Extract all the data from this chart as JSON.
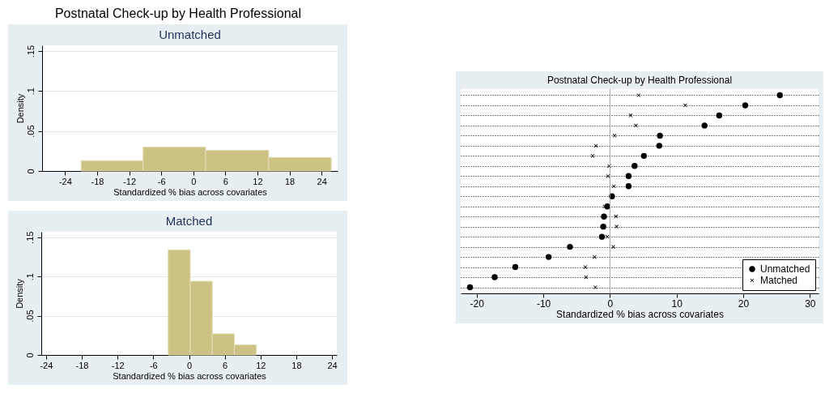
{
  "chart_data": [
    {
      "type": "histogram",
      "title": "Postnatal Check-up by Health Professional",
      "subtitle": "Unmatched",
      "xlabel": "Standardized % bias across covariates",
      "ylabel": "Density",
      "bins": [
        -21,
        -9.4,
        2.3,
        14.1,
        25.8
      ],
      "values": [
        0.013,
        0.03,
        0.026,
        0.017
      ],
      "color": "#cbc283",
      "xlim": [
        -28.3,
        27
      ],
      "xticks": [
        -24,
        -18,
        -12,
        -6,
        0,
        6,
        12,
        18,
        24
      ],
      "ylim": [
        0,
        0.157
      ],
      "yticks": [
        0,
        {
          "value": 0.05,
          "label": ".05"
        },
        {
          "value": 0.1,
          "label": ".1"
        },
        {
          "value": 0.15,
          "label": ".15"
        }
      ],
      "grid": "y"
    },
    {
      "type": "histogram",
      "title": "Matched",
      "xlabel": "Standardized % bias across covariates",
      "ylabel": "Density",
      "bins": [
        -3.5,
        0.2,
        3.9,
        7.6,
        11.3
      ],
      "values": [
        0.134,
        0.094,
        0.027,
        0.013
      ],
      "color": "#cbc283",
      "xlim": [
        -24.8,
        24.8
      ],
      "xticks": [
        -24,
        -18,
        -12,
        -6,
        0,
        6,
        12,
        18,
        24
      ],
      "ylim": [
        0,
        0.157
      ],
      "yticks": [
        0,
        {
          "value": 0.05,
          "label": ".05"
        },
        {
          "value": 0.1,
          "label": ".1"
        },
        {
          "value": 0.15,
          "label": ".15"
        }
      ],
      "grid": "y"
    },
    {
      "type": "scatter",
      "title": "Postnatal Check-up by Health Professional",
      "xlabel": "Standardized % bias across covariates",
      "orientation": "horizontal",
      "categories": [
        null,
        null,
        null,
        null,
        null,
        null,
        null,
        null,
        null,
        null,
        null,
        null,
        null,
        null,
        null,
        null,
        null,
        null,
        null,
        null
      ],
      "series": [
        {
          "name": "Unmatched",
          "color": "#000000",
          "marker": "circle",
          "values": [
            25.5,
            20.3,
            16.4,
            14.2,
            7.5,
            7.4,
            5.1,
            3.7,
            2.8,
            2.8,
            0.3,
            -0.4,
            -0.9,
            -1.0,
            -1.2,
            -6.0,
            -9.2,
            -14.2,
            -17.3,
            -21.0
          ]
        },
        {
          "name": "Matched",
          "color": "#000000",
          "marker": "cross",
          "values": [
            4.3,
            11.3,
            3.1,
            3.9,
            0.7,
            -2.1,
            -2.6,
            -0.1,
            -0.3,
            0.6,
            null,
            -0.8,
            0.9,
            1.0,
            -0.4,
            0.5,
            -2.3,
            -3.7,
            -3.6,
            -2.2
          ]
        }
      ],
      "xlim": [
        -22.4,
        31.3
      ],
      "xticks": [
        -20,
        -10,
        0,
        10,
        20,
        30
      ],
      "tick_labels": "x",
      "grid": "y",
      "line_style": "dotted",
      "ref_lines": [
        {
          "axis": "x",
          "value": 0,
          "color": "#a0a0a0"
        }
      ],
      "legend": "bottom right"
    }
  ]
}
